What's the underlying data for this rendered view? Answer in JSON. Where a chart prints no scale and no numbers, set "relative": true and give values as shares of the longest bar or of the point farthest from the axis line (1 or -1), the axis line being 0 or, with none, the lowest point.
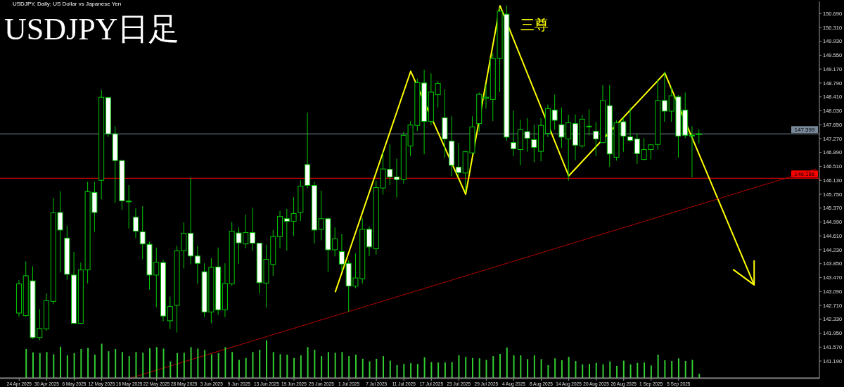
{
  "chart_data": [
    {
      "type": "candlestick",
      "title": "USDJPY日足",
      "subtitle": "USDJPY, Daily: US Dollar vs Japanese Yen",
      "annotations": [
        "三尊"
      ],
      "categories": [
        "24 Apr 2025",
        null,
        null,
        null,
        "30 Apr 2025",
        null,
        null,
        null,
        "6 May 2025",
        null,
        null,
        null,
        "12 May 2025",
        null,
        null,
        null,
        "16 May 2025",
        null,
        null,
        null,
        "22 May 2025",
        null,
        null,
        null,
        "28 May 2025",
        null,
        null,
        null,
        "3 Jun 2025",
        null,
        null,
        null,
        "9 Jun 2025",
        null,
        null,
        null,
        "13 Jun 2025",
        null,
        null,
        null,
        "19 Jun 2025",
        null,
        null,
        null,
        "25 Jun 2025",
        null,
        null,
        null,
        "1 Jul 2025",
        null,
        null,
        null,
        "7 Jul 2025",
        null,
        null,
        null,
        "11 Jul 2025",
        null,
        null,
        null,
        "17 Jul 2025",
        null,
        null,
        null,
        "23 Jul 2025",
        null,
        null,
        null,
        "29 Jul 2025",
        null,
        null,
        null,
        "4 Aug 2025",
        null,
        null,
        null,
        "8 Aug 2025",
        null,
        null,
        null,
        "14 Aug 2025",
        null,
        null,
        null,
        "20 Aug 2025",
        null,
        null,
        null,
        "26 Aug 2025",
        null,
        null,
        null,
        "1 Sep 2025",
        null,
        null,
        null,
        "5 Sep 2025",
        null,
        null,
        null,
        null,
        null,
        null,
        null,
        null,
        null,
        null,
        null,
        null,
        null,
        null,
        null,
        null,
        null,
        null,
        null,
        null
      ],
      "ohlc": [
        [
          142.5,
          143.4,
          142.4,
          143.3
        ],
        [
          142.43,
          143.91,
          142.4,
          143.52
        ],
        [
          143.38,
          143.78,
          141.79,
          141.83
        ],
        [
          141.83,
          142.61,
          141.76,
          142.08
        ],
        [
          142.07,
          143.04,
          142.01,
          142.84
        ],
        [
          142.82,
          145.65,
          142.74,
          145.24
        ],
        [
          145.25,
          145.83,
          143.61,
          144.77
        ],
        [
          144.55,
          144.89,
          143.41,
          143.56
        ],
        [
          143.54,
          144.17,
          142.21,
          142.22
        ],
        [
          142.22,
          143.88,
          142.21,
          143.68
        ],
        [
          143.68,
          146.09,
          143.31,
          145.82
        ],
        [
          145.8,
          146.09,
          144.72,
          145.25
        ],
        [
          146.13,
          148.6,
          145.61,
          148.4
        ],
        [
          148.39,
          148.41,
          147.31,
          147.4
        ],
        [
          147.4,
          147.61,
          145.51,
          146.67
        ],
        [
          146.67,
          146.67,
          145.32,
          145.57
        ],
        [
          145.56,
          146.0,
          144.81,
          145.55
        ],
        [
          145.12,
          145.36,
          144.55,
          144.74
        ],
        [
          144.72,
          145.42,
          143.97,
          144.39
        ],
        [
          144.38,
          144.45,
          143.14,
          143.54
        ],
        [
          143.54,
          144.29,
          142.66,
          143.89
        ],
        [
          143.88,
          143.95,
          142.27,
          142.42
        ],
        [
          142.29,
          142.95,
          142.07,
          142.68
        ],
        [
          142.71,
          144.34,
          141.97,
          144.2
        ],
        [
          144.2,
          144.98,
          143.72,
          144.68
        ],
        [
          144.68,
          146.2,
          143.83,
          144.06
        ],
        [
          144.06,
          144.34,
          143.3,
          143.86
        ],
        [
          143.63,
          143.86,
          142.39,
          142.53
        ],
        [
          142.53,
          144.0,
          142.22,
          143.75
        ],
        [
          143.76,
          144.29,
          142.45,
          142.59
        ],
        [
          142.59,
          143.86,
          142.39,
          143.31
        ],
        [
          143.3,
          144.99,
          143.25,
          144.74
        ],
        [
          144.69,
          144.84,
          143.84,
          144.42
        ],
        [
          144.39,
          145.19,
          144.27,
          144.7
        ],
        [
          144.7,
          145.38,
          144.2,
          144.41
        ],
        [
          144.41,
          144.42,
          143.04,
          143.33
        ],
        [
          143.32,
          144.37,
          142.65,
          143.97
        ],
        [
          143.83,
          144.77,
          143.52,
          144.59
        ],
        [
          144.59,
          145.29,
          144.27,
          145.14
        ],
        [
          145.08,
          145.35,
          144.21,
          145.01
        ],
        [
          145.01,
          145.67,
          144.61,
          145.22
        ],
        [
          145.25,
          146.13,
          145.02,
          145.97
        ],
        [
          146.56,
          147.98,
          145.92,
          145.99
        ],
        [
          145.99,
          146.09,
          144.4,
          144.77
        ],
        [
          144.79,
          145.85,
          144.49,
          145.08
        ],
        [
          145.08,
          145.11,
          143.63,
          144.23
        ],
        [
          144.23,
          144.84,
          144.05,
          144.53
        ],
        [
          144.18,
          144.66,
          143.65,
          143.84
        ],
        [
          143.86,
          143.94,
          142.54,
          143.24
        ],
        [
          143.24,
          144.13,
          143.18,
          143.46
        ],
        [
          143.44,
          145.09,
          143.31,
          144.79
        ],
        [
          144.79,
          144.87,
          144.06,
          144.31
        ],
        [
          144.26,
          146.12,
          144.1,
          145.93
        ],
        [
          145.92,
          146.9,
          145.74,
          146.44
        ],
        [
          146.43,
          147.11,
          146.0,
          146.22
        ],
        [
          146.22,
          146.72,
          145.66,
          146.15
        ],
        [
          146.15,
          147.45,
          146.04,
          147.36
        ],
        [
          147.07,
          147.74,
          146.79,
          147.64
        ],
        [
          147.63,
          148.91,
          147.48,
          148.8
        ],
        [
          148.79,
          149.15,
          146.84,
          147.74
        ],
        [
          147.74,
          149.05,
          147.64,
          148.54
        ],
        [
          148.47,
          148.84,
          148.12,
          148.78
        ],
        [
          147.84,
          148.61,
          146.75,
          147.26
        ],
        [
          147.2,
          147.88,
          146.24,
          146.54
        ],
        [
          146.49,
          147.15,
          146.22,
          146.34
        ],
        [
          146.33,
          146.94,
          145.8,
          146.91
        ],
        [
          146.88,
          147.88,
          146.84,
          147.59
        ],
        [
          147.68,
          148.53,
          147.45,
          148.48
        ],
        [
          148.37,
          148.76,
          148.09,
          148.4
        ],
        [
          148.34,
          149.6,
          147.75,
          149.46
        ],
        [
          149.46,
          150.85,
          148.54,
          150.75
        ],
        [
          150.67,
          150.91,
          147.21,
          147.31
        ],
        [
          147.16,
          148.03,
          146.79,
          146.99
        ],
        [
          146.97,
          147.78,
          146.54,
          147.51
        ],
        [
          147.46,
          147.83,
          146.91,
          147.28
        ],
        [
          147.24,
          147.65,
          146.62,
          147.03
        ],
        [
          146.92,
          147.83,
          146.65,
          147.63
        ],
        [
          147.41,
          148.2,
          147.31,
          148.09
        ],
        [
          148.05,
          148.47,
          147.51,
          147.77
        ],
        [
          147.65,
          148.12,
          147.01,
          147.31
        ],
        [
          147.26,
          147.92,
          146.12,
          147.7
        ],
        [
          147.68,
          147.93,
          146.67,
          147.09
        ],
        [
          147.07,
          147.92,
          147.01,
          147.8
        ],
        [
          147.61,
          148.07,
          147.36,
          147.6
        ],
        [
          147.47,
          147.73,
          146.79,
          147.26
        ],
        [
          147.16,
          148.73,
          147.16,
          148.31
        ],
        [
          148.17,
          148.73,
          146.5,
          146.85
        ],
        [
          146.76,
          147.77,
          146.67,
          147.7
        ],
        [
          147.73,
          147.85,
          146.91,
          147.34
        ],
        [
          147.32,
          148.12,
          147.18,
          147.22
        ],
        [
          147.26,
          147.41,
          146.58,
          146.86
        ],
        [
          146.7,
          147.28,
          146.68,
          146.97
        ],
        [
          146.97,
          147.12,
          146.7,
          147.1
        ],
        [
          147.11,
          148.9,
          146.97,
          148.31
        ],
        [
          148.31,
          149.1,
          147.73,
          148.02
        ],
        [
          148.02,
          148.69,
          147.73,
          148.44
        ],
        [
          148.41,
          148.46,
          146.75,
          147.34
        ],
        [
          148.05,
          148.53,
          147.28,
          147.36
        ],
        [
          147.36,
          147.61,
          146.21,
          147.35
        ],
        [
          147.38,
          147.52,
          147.14,
          147.4
        ],
        null,
        null,
        null,
        null,
        null,
        null,
        null,
        null,
        null,
        null,
        null,
        null,
        null,
        null,
        null,
        null,
        null
      ],
      "series": [
        {
          "type": "line",
          "color": "#ffff00",
          "values": [
            null,
            null,
            null,
            null,
            null,
            null,
            null,
            null,
            null,
            null,
            null,
            null,
            null,
            null,
            null,
            null,
            null,
            null,
            null,
            null,
            null,
            null,
            null,
            null,
            null,
            null,
            null,
            null,
            null,
            null,
            null,
            null,
            null,
            null,
            null,
            null,
            null,
            null,
            null,
            null,
            null,
            null,
            null,
            null,
            null,
            null,
            143.07,
            null,
            null,
            null,
            null,
            null,
            null,
            null,
            null,
            null,
            null,
            149.11,
            null,
            null,
            null,
            null,
            null,
            null,
            null,
            145.75,
            null,
            null,
            null,
            null,
            150.9,
            null,
            null,
            null,
            null,
            null,
            null,
            null,
            null,
            null,
            146.25,
            null,
            null,
            null,
            null,
            null,
            null,
            null,
            null,
            null,
            null,
            null,
            null,
            null,
            149.06,
            null,
            null,
            null,
            null,
            null,
            null,
            null,
            null,
            null,
            null,
            null,
            null,
            143.27,
            null,
            null,
            null,
            null,
            null,
            null,
            null,
            null,
            null
          ]
        },
        {
          "type": "line",
          "color": "#b40000",
          "values": [
            null,
            null,
            null,
            null,
            null,
            null,
            null,
            null,
            null,
            null,
            null,
            null,
            null,
            null,
            null,
            null,
            140.71,
            null,
            null,
            null,
            null,
            null,
            null,
            null,
            null,
            null,
            null,
            null,
            null,
            null,
            null,
            null,
            null,
            null,
            null,
            null,
            null,
            null,
            null,
            null,
            null,
            null,
            null,
            null,
            null,
            null,
            null,
            null,
            null,
            null,
            null,
            null,
            null,
            null,
            null,
            null,
            null,
            null,
            null,
            null,
            null,
            null,
            null,
            null,
            null,
            null,
            null,
            null,
            null,
            null,
            null,
            null,
            null,
            null,
            null,
            null,
            null,
            null,
            null,
            null,
            null,
            null,
            null,
            null,
            null,
            null,
            null,
            null,
            null,
            null,
            null,
            null,
            null,
            null,
            null,
            null,
            null,
            null,
            null,
            null,
            null,
            null,
            null,
            null,
            null,
            null,
            null,
            null,
            null,
            null,
            null,
            null,
            null,
            null,
            null,
            null,
            146.44
          ]
        }
      ],
      "ylim": [
        140.71,
        151.02
      ],
      "yticks": [
        {
          "value": 141.19,
          "label": "141.190"
        },
        {
          "value": 141.57,
          "label": "141.570"
        },
        {
          "value": 141.95,
          "label": "141.950"
        },
        {
          "value": 142.33,
          "label": "142.330"
        },
        {
          "value": 142.71,
          "label": "142.710"
        },
        {
          "value": 143.09,
          "label": "143.090"
        },
        {
          "value": 143.47,
          "label": "143.470"
        },
        {
          "value": 143.85,
          "label": "143.850"
        },
        {
          "value": 144.23,
          "label": "144.230"
        },
        {
          "value": 144.61,
          "label": "144.610"
        },
        {
          "value": 144.99,
          "label": "144.990"
        },
        {
          "value": 145.37,
          "label": "145.370"
        },
        {
          "value": 145.75,
          "label": "145.750"
        },
        {
          "value": 146.13,
          "label": "146.130"
        },
        {
          "value": 146.51,
          "label": "146.510"
        },
        {
          "value": 146.89,
          "label": "146.890"
        },
        {
          "value": 147.27,
          "label": "147.270"
        },
        {
          "value": 147.65,
          "label": "147.650"
        },
        {
          "value": 148.03,
          "label": "148.030"
        },
        {
          "value": 148.41,
          "label": "148.410"
        },
        {
          "value": 148.79,
          "label": "148.790"
        },
        {
          "value": 149.17,
          "label": "149.170"
        },
        {
          "value": 149.55,
          "label": "149.550"
        },
        {
          "value": 149.93,
          "label": "149.930"
        },
        {
          "value": 150.31,
          "label": "150.310"
        },
        {
          "value": 150.69,
          "label": "150.690"
        }
      ],
      "ref_lines": [
        {
          "axis": "y",
          "value": 147.399,
          "label": "147.399",
          "color": "#778899"
        },
        {
          "axis": "y",
          "value": 146.186,
          "label": "146.186",
          "color": "#ff0000"
        }
      ]
    },
    {
      "type": "bar",
      "relative": true,
      "color": "#32cd32",
      "categories": [
        null,
        null,
        null,
        null,
        null,
        null,
        null,
        null,
        null,
        null,
        null,
        null,
        null,
        null,
        null,
        null,
        null,
        null,
        null,
        null,
        null,
        null,
        null,
        null,
        null,
        null,
        null,
        null,
        null,
        null,
        null,
        null,
        null,
        null,
        null,
        null,
        null,
        null,
        null,
        null,
        null,
        null,
        null,
        null,
        null,
        null,
        null,
        null,
        null,
        null,
        null,
        null,
        null,
        null,
        null,
        null,
        null,
        null,
        null,
        null,
        null,
        null,
        null,
        null,
        null,
        null,
        null,
        null,
        null,
        null,
        null,
        null,
        null,
        null,
        null,
        null,
        null,
        null,
        null,
        null,
        null,
        null,
        null,
        null,
        null,
        null,
        null,
        null,
        null,
        null,
        null,
        null,
        null,
        null,
        null,
        null,
        null,
        null,
        null,
        null,
        null,
        null,
        null,
        null,
        null,
        null,
        null,
        null,
        null,
        null,
        null,
        null,
        null,
        null,
        null,
        null,
        null
      ],
      "values": [
        null,
        0.77,
        0.68,
        0.66,
        0.69,
        0.63,
        0.83,
        0.6,
        0.66,
        0.77,
        0.8,
        0.62,
        0.91,
        0.71,
        0.77,
        0.69,
        0.58,
        0.69,
        0.67,
        0.79,
        0.82,
        0.78,
        0.44,
        0.66,
        0.67,
        0.82,
        0.78,
        0.74,
        0.63,
        0.66,
        0.82,
        0.69,
        0.48,
        0.53,
        0.69,
        0.75,
        1,
        0.69,
        0.63,
        0.62,
        0.53,
        0.6,
        0.82,
        0.75,
        0.58,
        0.69,
        0.67,
        0.69,
        0.58,
        0.62,
        0.51,
        0.44,
        0.51,
        0.58,
        0.46,
        0.34,
        0.37,
        0.39,
        0.37,
        0.55,
        0.42,
        0.41,
        0.41,
        0.42,
        0.6,
        0.56,
        0.53,
        0.52,
        0.48,
        0.58,
        0.64,
        0.81,
        0.6,
        0.6,
        0.5,
        0.6,
        0.5,
        0.34,
        0.52,
        0.47,
        0.56,
        0.45,
        0.36,
        0.37,
        0.4,
        0.36,
        0.44,
        0.32,
        0.46,
        0.36,
        0.4,
        0.41,
        0.33,
        0.62,
        0.47,
        0.45,
        0.52,
        0.45,
        0.48,
        0.11,
        null,
        null,
        null,
        null,
        null,
        null,
        null,
        null,
        null,
        null,
        null,
        null,
        null,
        null,
        null,
        null,
        null
      ]
    }
  ]
}
